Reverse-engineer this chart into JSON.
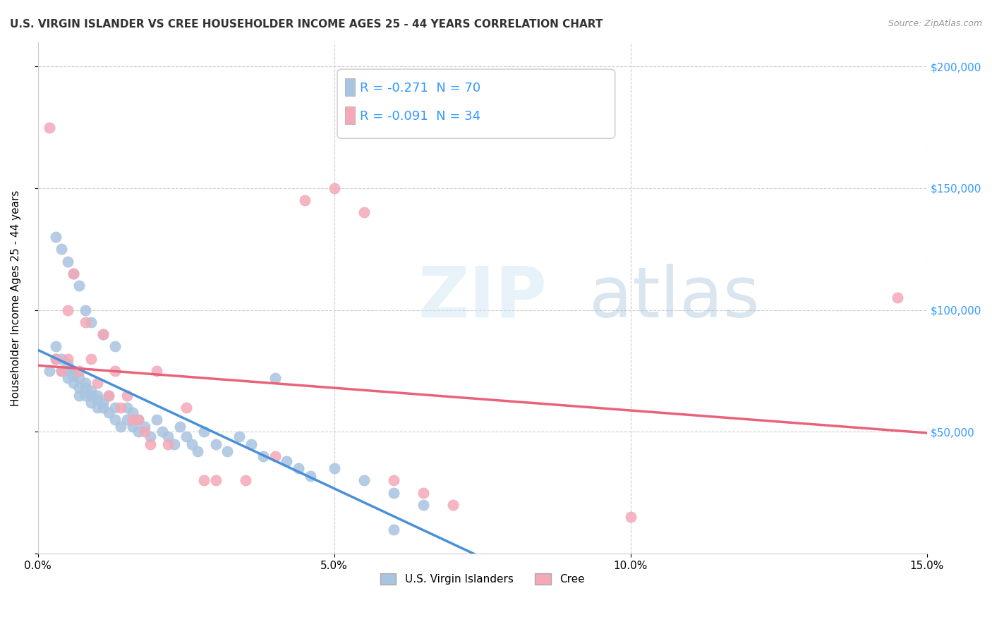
{
  "title": "U.S. VIRGIN ISLANDER VS CREE HOUSEHOLDER INCOME AGES 25 - 44 YEARS CORRELATION CHART",
  "source": "Source: ZipAtlas.com",
  "xlabel_bottom": "",
  "ylabel": "Householder Income Ages 25 - 44 years",
  "xlim": [
    0,
    0.15
  ],
  "ylim": [
    0,
    210000
  ],
  "xticks": [
    0.0,
    0.05,
    0.1,
    0.15
  ],
  "xticklabels": [
    "0.0%",
    "5.0%",
    "10.0%",
    "15.0%"
  ],
  "yticks": [
    0,
    50000,
    100000,
    150000,
    200000
  ],
  "yticklabels": [
    "",
    "$50,000",
    "$100,000",
    "$150,000",
    "$200,000"
  ],
  "legend_labels": [
    "U.S. Virgin Islanders",
    "Cree"
  ],
  "blue_color": "#a8c4e0",
  "pink_color": "#f4a8b8",
  "blue_line_color": "#4a90d9",
  "pink_line_color": "#e8637a",
  "blue_dash_color": "#a8c4e0",
  "R_blue": -0.271,
  "N_blue": 70,
  "R_pink": -0.091,
  "N_pink": 34,
  "watermark": "ZIPatlas",
  "blue_scatter_x": [
    0.002,
    0.003,
    0.003,
    0.004,
    0.004,
    0.005,
    0.005,
    0.005,
    0.006,
    0.006,
    0.006,
    0.007,
    0.007,
    0.007,
    0.008,
    0.008,
    0.008,
    0.009,
    0.009,
    0.009,
    0.01,
    0.01,
    0.01,
    0.011,
    0.011,
    0.012,
    0.012,
    0.013,
    0.013,
    0.014,
    0.015,
    0.015,
    0.016,
    0.016,
    0.017,
    0.017,
    0.018,
    0.019,
    0.02,
    0.021,
    0.022,
    0.023,
    0.024,
    0.025,
    0.026,
    0.027,
    0.028,
    0.03,
    0.032,
    0.034,
    0.036,
    0.038,
    0.04,
    0.042,
    0.044,
    0.046,
    0.05,
    0.055,
    0.06,
    0.065,
    0.003,
    0.004,
    0.005,
    0.006,
    0.007,
    0.008,
    0.009,
    0.011,
    0.013,
    0.06
  ],
  "blue_scatter_y": [
    75000,
    80000,
    85000,
    75000,
    80000,
    75000,
    78000,
    72000,
    75000,
    73000,
    70000,
    72000,
    68000,
    65000,
    70000,
    65000,
    68000,
    65000,
    62000,
    67000,
    63000,
    60000,
    65000,
    62000,
    60000,
    58000,
    65000,
    60000,
    55000,
    52000,
    60000,
    55000,
    58000,
    52000,
    55000,
    50000,
    52000,
    48000,
    55000,
    50000,
    48000,
    45000,
    52000,
    48000,
    45000,
    42000,
    50000,
    45000,
    42000,
    48000,
    45000,
    40000,
    72000,
    38000,
    35000,
    32000,
    35000,
    30000,
    25000,
    20000,
    130000,
    125000,
    120000,
    115000,
    110000,
    100000,
    95000,
    90000,
    85000,
    10000
  ],
  "pink_scatter_x": [
    0.002,
    0.003,
    0.004,
    0.005,
    0.005,
    0.006,
    0.007,
    0.008,
    0.009,
    0.01,
    0.011,
    0.012,
    0.013,
    0.014,
    0.015,
    0.016,
    0.017,
    0.018,
    0.019,
    0.02,
    0.022,
    0.025,
    0.028,
    0.03,
    0.035,
    0.04,
    0.045,
    0.05,
    0.055,
    0.06,
    0.065,
    0.07,
    0.1,
    0.145
  ],
  "pink_scatter_y": [
    175000,
    80000,
    75000,
    100000,
    80000,
    115000,
    75000,
    95000,
    80000,
    70000,
    90000,
    65000,
    75000,
    60000,
    65000,
    55000,
    55000,
    50000,
    45000,
    75000,
    45000,
    60000,
    30000,
    30000,
    30000,
    40000,
    145000,
    150000,
    140000,
    30000,
    25000,
    20000,
    15000,
    105000
  ]
}
